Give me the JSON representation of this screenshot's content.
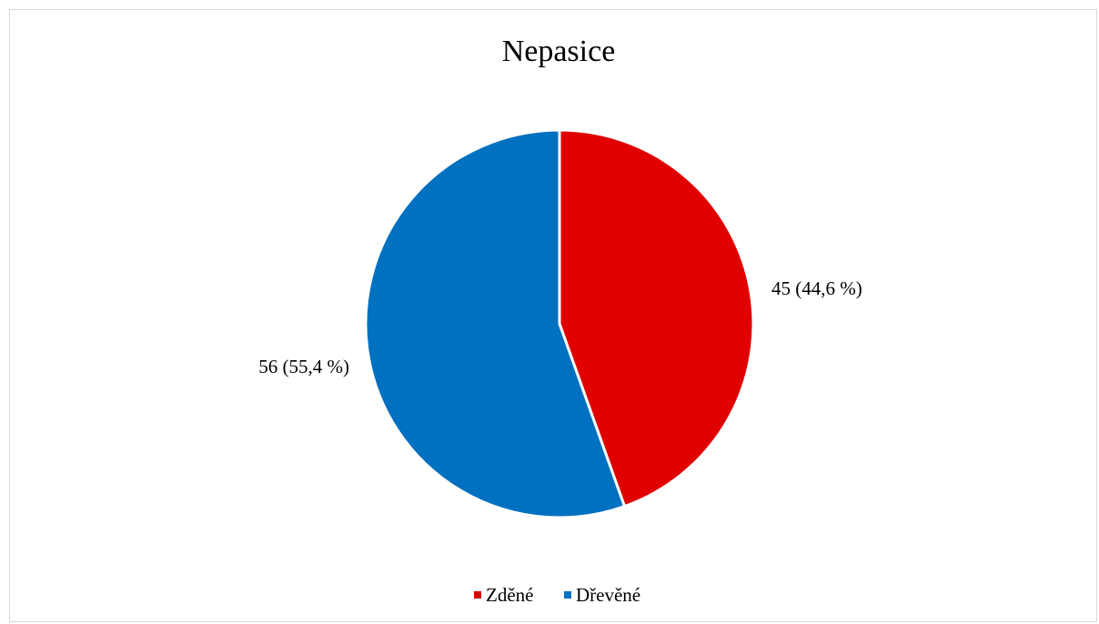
{
  "chart_data": {
    "type": "pie",
    "title": "Nepasice",
    "slices": [
      {
        "label": "Zděné",
        "value": 45,
        "data_label": "45 (44,6 %)",
        "color": "#e00000"
      },
      {
        "label": "Dřevěné",
        "value": 56,
        "data_label": "56 (55,4 %)",
        "color": "#0070c0"
      }
    ],
    "legend_position": "bottom",
    "start_angle_deg": 0,
    "direction": "clockwise"
  }
}
